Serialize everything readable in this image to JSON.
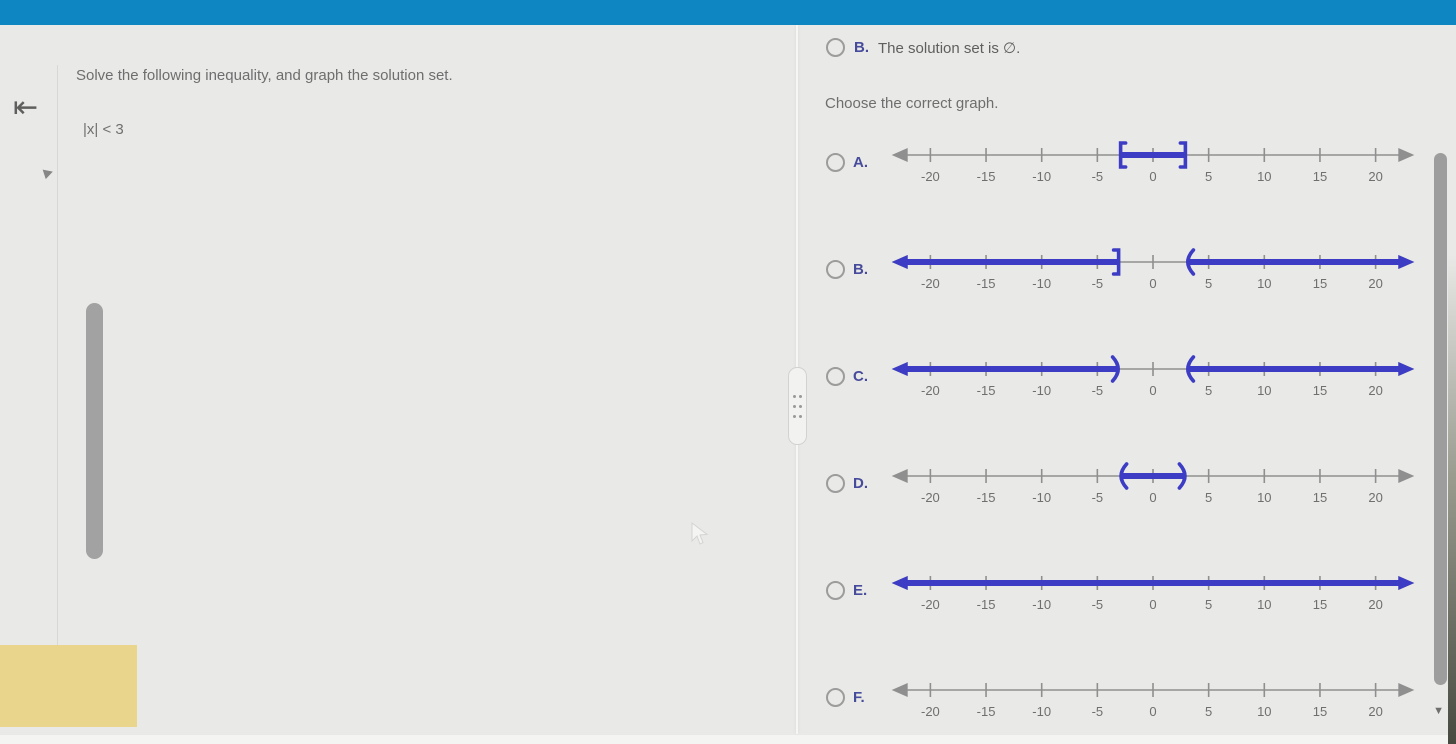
{
  "left_panel": {
    "collapse_icon": "⇤",
    "question": "Solve the following inequality, and graph the solution set.",
    "inequality": "|x| < 3"
  },
  "top_answer": {
    "letter": "B.",
    "text": "The solution set is ∅."
  },
  "right_panel": {
    "prompt": "Choose the correct graph."
  },
  "scrollbar": {
    "down_arrow": "▼"
  },
  "colors": {
    "topbar_teal": "#0e86c1",
    "accent_blue": "#3c3cc4",
    "letter_blue": "#474b9b",
    "axis_gray": "#8f8f8f",
    "tick_label_gray": "#6f6f6f",
    "sticky_yellow": "#e9d68c"
  },
  "chart_data": [
    {
      "type": "number_line",
      "option": "A.",
      "xlim": [
        -20,
        20
      ],
      "tick_step": 5,
      "ticks": [
        -20,
        -15,
        -10,
        -5,
        0,
        5,
        10,
        15,
        20
      ],
      "selected": false,
      "interval": "[-3, 3]",
      "segments": [
        {
          "from": -3,
          "to": 3,
          "left": "[",
          "right": "]"
        }
      ]
    },
    {
      "type": "number_line",
      "option": "B.",
      "xlim": [
        -20,
        20
      ],
      "tick_step": 5,
      "ticks": [
        -20,
        -15,
        -10,
        -5,
        0,
        5,
        10,
        15,
        20
      ],
      "selected": false,
      "interval": "(-∞, -3] ∪ (3, ∞)",
      "segments": [
        {
          "from": "-inf",
          "to": -3,
          "left": "arrow",
          "right": "]"
        },
        {
          "from": 3,
          "to": "inf",
          "left": "(",
          "right": "arrow"
        }
      ]
    },
    {
      "type": "number_line",
      "option": "C.",
      "xlim": [
        -20,
        20
      ],
      "tick_step": 5,
      "ticks": [
        -20,
        -15,
        -10,
        -5,
        0,
        5,
        10,
        15,
        20
      ],
      "selected": false,
      "interval": "(-∞, -3) ∪ (3, ∞)",
      "segments": [
        {
          "from": "-inf",
          "to": -3,
          "left": "arrow",
          "right": ")"
        },
        {
          "from": 3,
          "to": "inf",
          "left": "(",
          "right": "arrow"
        }
      ]
    },
    {
      "type": "number_line",
      "option": "D.",
      "xlim": [
        -20,
        20
      ],
      "tick_step": 5,
      "ticks": [
        -20,
        -15,
        -10,
        -5,
        0,
        5,
        10,
        15,
        20
      ],
      "selected": false,
      "interval": "(-3, 3)",
      "segments": [
        {
          "from": -3,
          "to": 3,
          "left": "(",
          "right": ")"
        }
      ]
    },
    {
      "type": "number_line",
      "option": "E.",
      "xlim": [
        -20,
        20
      ],
      "tick_step": 5,
      "ticks": [
        -20,
        -15,
        -10,
        -5,
        0,
        5,
        10,
        15,
        20
      ],
      "selected": false,
      "interval": "(-∞, ∞)",
      "segments": [
        {
          "from": "-inf",
          "to": "inf",
          "left": "arrow",
          "right": "arrow"
        }
      ]
    },
    {
      "type": "number_line",
      "option": "F.",
      "xlim": [
        -20,
        20
      ],
      "tick_step": 5,
      "ticks": [
        -20,
        -15,
        -10,
        -5,
        0,
        5,
        10,
        15,
        20
      ],
      "selected": false,
      "interval": "empty",
      "segments": []
    }
  ]
}
